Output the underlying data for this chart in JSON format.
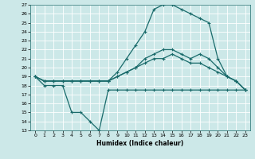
{
  "xlabel": "Humidex (Indice chaleur)",
  "bg_color": "#cce8e8",
  "line_color": "#1a6b6b",
  "grid_color": "#ffffff",
  "xlim": [
    -0.5,
    23.5
  ],
  "ylim": [
    13,
    27
  ],
  "xticks": [
    0,
    1,
    2,
    3,
    4,
    5,
    6,
    7,
    8,
    9,
    10,
    11,
    12,
    13,
    14,
    15,
    16,
    17,
    18,
    19,
    20,
    21,
    22,
    23
  ],
  "yticks": [
    13,
    14,
    15,
    16,
    17,
    18,
    19,
    20,
    21,
    22,
    23,
    24,
    25,
    26,
    27
  ],
  "line1_x": [
    0,
    1,
    2,
    3,
    4,
    5,
    6,
    7,
    8,
    9,
    10,
    11,
    12,
    13,
    14,
    15,
    16,
    17,
    18,
    19,
    20,
    21,
    22,
    23
  ],
  "line1_y": [
    19,
    18,
    18,
    18,
    15,
    15,
    14,
    13,
    17.5,
    17.5,
    17.5,
    17.5,
    17.5,
    17.5,
    17.5,
    17.5,
    17.5,
    17.5,
    17.5,
    17.5,
    17.5,
    17.5,
    17.5,
    17.5
  ],
  "line2_x": [
    0,
    1,
    2,
    3,
    4,
    5,
    6,
    7,
    8,
    9,
    10,
    11,
    12,
    13,
    14,
    15,
    16,
    17,
    18,
    19,
    20,
    21,
    22,
    23
  ],
  "line2_y": [
    19,
    18.5,
    18.5,
    18.5,
    18.5,
    18.5,
    18.5,
    18.5,
    18.5,
    19,
    19.5,
    20,
    20.5,
    21,
    21,
    21.5,
    21,
    20.5,
    20.5,
    20,
    19.5,
    19,
    18.5,
    17.5
  ],
  "line3_x": [
    0,
    1,
    2,
    3,
    4,
    5,
    6,
    7,
    8,
    9,
    10,
    11,
    12,
    13,
    14,
    15,
    16,
    17,
    18,
    19,
    20,
    21,
    22,
    23
  ],
  "line3_y": [
    19,
    18.5,
    18.5,
    18.5,
    18.5,
    18.5,
    18.5,
    18.5,
    18.5,
    19.5,
    21,
    22.5,
    24,
    26.5,
    27,
    27,
    26.5,
    26,
    25.5,
    25,
    21,
    19,
    18.5,
    17.5
  ],
  "line4_x": [
    0,
    1,
    2,
    3,
    4,
    5,
    6,
    7,
    8,
    9,
    10,
    11,
    12,
    13,
    14,
    15,
    16,
    17,
    18,
    19,
    20,
    21,
    22,
    23
  ],
  "line4_y": [
    19,
    18.5,
    18.5,
    18.5,
    18.5,
    18.5,
    18.5,
    18.5,
    18.5,
    19,
    19.5,
    20,
    21,
    21.5,
    22,
    22,
    21.5,
    21,
    21.5,
    21,
    20,
    19,
    18.5,
    17.5
  ]
}
